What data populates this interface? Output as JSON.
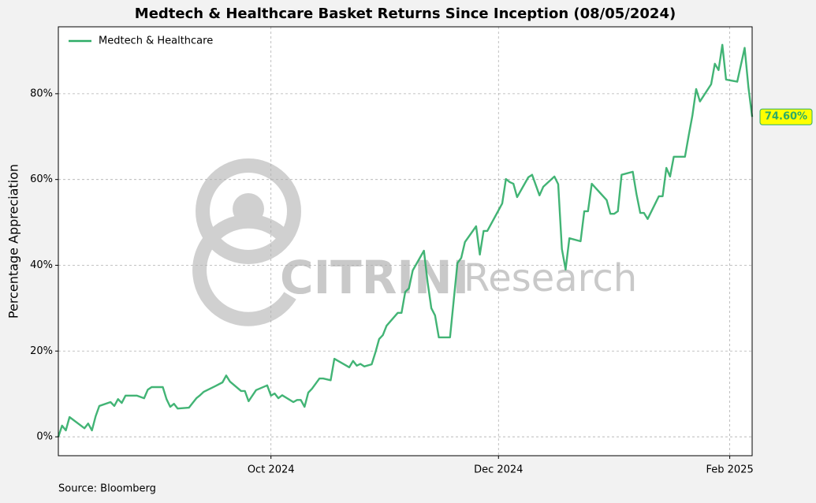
{
  "chart_data": {
    "type": "line",
    "title": "Medtech & Healthcare Basket Returns Since Inception (08/05/2024)",
    "y_label": "Percentage Appreciation",
    "source": "Source: Bloomberg",
    "watermark": [
      "CITRINI",
      "Research"
    ],
    "last_value_label": "74.60%",
    "legend": "upper left",
    "grid": true,
    "x": [
      "2024-08-05",
      "2024-08-06",
      "2024-08-07",
      "2024-08-08",
      "2024-08-12",
      "2024-08-13",
      "2024-08-14",
      "2024-08-15",
      "2024-08-16",
      "2024-08-19",
      "2024-08-20",
      "2024-08-21",
      "2024-08-22",
      "2024-08-23",
      "2024-08-26",
      "2024-08-28",
      "2024-08-29",
      "2024-08-30",
      "2024-09-02",
      "2024-09-03",
      "2024-09-04",
      "2024-09-05",
      "2024-09-06",
      "2024-09-09",
      "2024-09-11",
      "2024-09-12",
      "2024-09-13",
      "2024-09-16",
      "2024-09-18",
      "2024-09-19",
      "2024-09-20",
      "2024-09-23",
      "2024-09-24",
      "2024-09-25",
      "2024-09-27",
      "2024-09-30",
      "2024-10-01",
      "2024-10-02",
      "2024-10-03",
      "2024-10-04",
      "2024-10-07",
      "2024-10-08",
      "2024-10-09",
      "2024-10-10",
      "2024-10-11",
      "2024-10-12",
      "2024-10-14",
      "2024-10-15",
      "2024-10-17",
      "2024-10-18",
      "2024-10-21",
      "2024-10-22",
      "2024-10-23",
      "2024-10-24",
      "2024-10-25",
      "2024-10-26",
      "2024-10-28",
      "2024-10-29",
      "2024-10-30",
      "2024-10-31",
      "2024-11-01",
      "2024-11-04",
      "2024-11-05",
      "2024-11-06",
      "2024-11-07",
      "2024-11-08",
      "2024-11-11",
      "2024-11-12",
      "2024-11-13",
      "2024-11-14",
      "2024-11-15",
      "2024-11-18",
      "2024-11-20",
      "2024-11-21",
      "2024-11-22",
      "2024-11-25",
      "2024-11-26",
      "2024-11-27",
      "2024-11-28",
      "2024-12-02",
      "2024-12-03",
      "2024-12-04",
      "2024-12-05",
      "2024-12-06",
      "2024-12-09",
      "2024-12-10",
      "2024-12-12",
      "2024-12-13",
      "2024-12-16",
      "2024-12-17",
      "2024-12-18",
      "2024-12-19",
      "2024-12-20",
      "2024-12-23",
      "2024-12-24",
      "2024-12-25",
      "2024-12-26",
      "2024-12-30",
      "2024-12-31",
      "2025-01-01",
      "2025-01-02",
      "2025-01-03",
      "2025-01-06",
      "2025-01-07",
      "2025-01-08",
      "2025-01-09",
      "2025-01-10",
      "2025-01-13",
      "2025-01-14",
      "2025-01-15",
      "2025-01-16",
      "2025-01-17",
      "2025-01-20",
      "2025-01-21",
      "2025-01-22",
      "2025-01-23",
      "2025-01-24",
      "2025-01-27",
      "2025-01-28",
      "2025-01-29",
      "2025-01-30",
      "2025-01-31",
      "2025-02-03",
      "2025-02-05",
      "2025-02-06",
      "2025-02-07"
    ],
    "series": [
      {
        "name": "Medtech & Healthcare",
        "color": "#2eac66",
        "values": [
          0,
          2.6,
          1.5,
          4.6,
          2.0,
          3.1,
          1.5,
          4.8,
          7.2,
          8.1,
          7.2,
          8.8,
          7.9,
          9.6,
          9.6,
          9.0,
          11.0,
          11.6,
          11.6,
          8.8,
          7.0,
          7.7,
          6.6,
          6.8,
          9.0,
          9.7,
          10.5,
          11.8,
          12.7,
          14.3,
          12.9,
          10.7,
          10.7,
          8.3,
          10.9,
          12.0,
          9.6,
          10.1,
          9.0,
          9.7,
          8.1,
          8.6,
          8.6,
          7.0,
          10.3,
          11.2,
          13.6,
          13.6,
          13.2,
          18.2,
          16.7,
          16.2,
          17.7,
          16.6,
          17.0,
          16.4,
          16.9,
          19.7,
          22.8,
          23.7,
          25.9,
          28.9,
          28.9,
          33.8,
          34.6,
          38.8,
          43.4,
          36.0,
          30.0,
          28.3,
          23.2,
          23.2,
          40.5,
          41.7,
          45.4,
          49.1,
          42.5,
          48.0,
          48.0,
          54.4,
          60.1,
          59.4,
          59.0,
          55.9,
          60.5,
          61.1,
          56.3,
          58.3,
          60.7,
          58.9,
          43.8,
          39.0,
          46.3,
          45.6,
          52.6,
          52.6,
          59.0,
          55.2,
          52.0,
          52.0,
          52.6,
          61.1,
          61.8,
          56.6,
          52.2,
          52.2,
          50.8,
          56.1,
          56.1,
          62.7,
          60.7,
          65.3,
          65.3,
          70.3,
          75.0,
          81.1,
          78.2,
          82.2,
          87.0,
          85.5,
          91.4,
          83.3,
          82.8,
          90.7,
          81.5,
          74.6
        ]
      }
    ],
    "xlim": [
      "2024-08-05",
      "2025-02-07"
    ],
    "xticks": [
      {
        "value": "2024-10-01",
        "label": "Oct 2024"
      },
      {
        "value": "2024-12-01",
        "label": "Dec 2024"
      },
      {
        "value": "2025-02-01",
        "label": "Feb 2025"
      }
    ],
    "ylim": [
      -4.4,
      95.6
    ],
    "yticks": [
      {
        "value": 0,
        "label": "0%"
      },
      {
        "value": 20,
        "label": "20%"
      },
      {
        "value": 40,
        "label": "40%"
      },
      {
        "value": 60,
        "label": "60%"
      },
      {
        "value": 80,
        "label": "80%"
      }
    ]
  }
}
